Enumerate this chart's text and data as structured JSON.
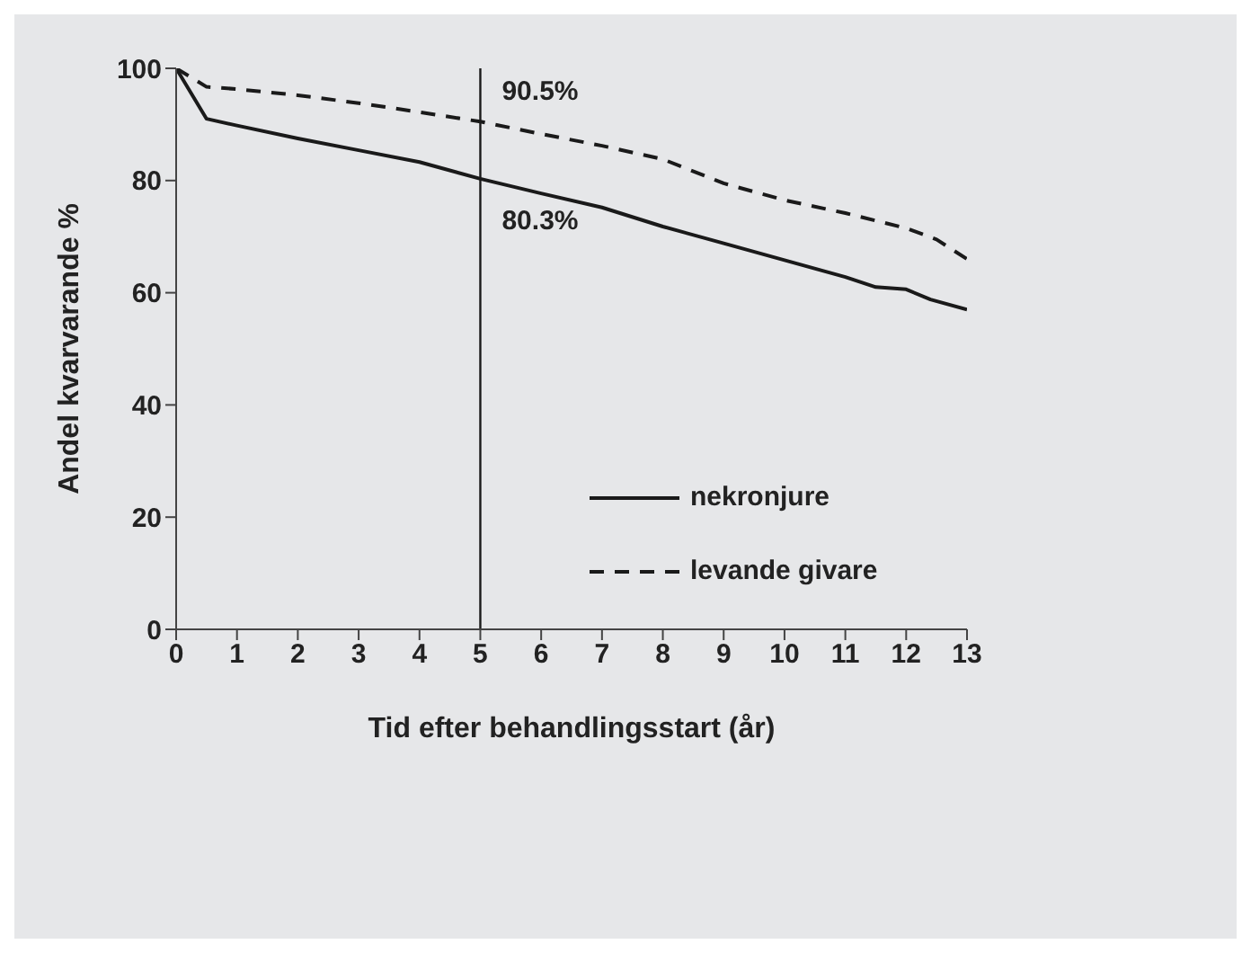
{
  "chart_data": {
    "type": "line",
    "xlabel": "Tid efter behandlingsstart (år)",
    "ylabel": "Andel kvarvarande %",
    "xlim": [
      0,
      13
    ],
    "xticks": [
      0,
      1,
      2,
      3,
      4,
      5,
      6,
      7,
      8,
      9,
      10,
      11,
      12,
      13
    ],
    "ylim": [
      0,
      100
    ],
    "yticks": [
      0,
      20,
      40,
      60,
      80,
      100
    ],
    "legend": "center",
    "marker": "none",
    "series": [
      {
        "name": "nekronjure",
        "color": "#1a1a1a",
        "line_style": "solid",
        "x": [
          0,
          0.5,
          1,
          2,
          3,
          4,
          5,
          6,
          7,
          8,
          9,
          10,
          11,
          11.5,
          12,
          12.4,
          13
        ],
        "values": [
          100,
          91,
          89.8,
          87.5,
          85.4,
          83.3,
          80.3,
          77.7,
          75.2,
          71.8,
          68.8,
          65.8,
          62.8,
          61,
          60.6,
          58.8,
          57
        ]
      },
      {
        "name": "levande givare",
        "color": "#1a1a1a",
        "line_style": "dashed",
        "x": [
          0,
          0.5,
          1,
          2,
          3,
          4,
          5,
          6,
          7,
          8,
          9,
          10,
          11,
          12,
          12.5,
          13
        ],
        "values": [
          100,
          96.7,
          96.3,
          95.2,
          93.8,
          92.2,
          90.5,
          88.3,
          86.2,
          83.8,
          79.5,
          76.5,
          74.2,
          71.5,
          69.5,
          66
        ]
      }
    ],
    "ref_lines": [
      {
        "axis": "x",
        "value": 5,
        "color": "#1a1a1a"
      }
    ],
    "annotations": [
      {
        "text": "90.5%",
        "x": 5,
        "y": 90.5
      },
      {
        "text": "80.3%",
        "x": 5,
        "y": 80.3
      }
    ]
  }
}
